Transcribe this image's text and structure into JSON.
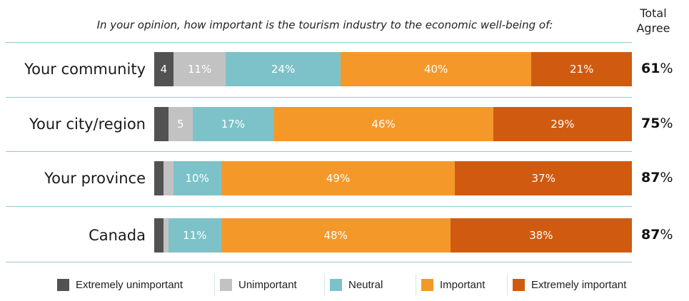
{
  "question": "In your opinion, how important is the tourism industry to the economic well-being of:",
  "total_header": [
    "Total",
    "Agree"
  ],
  "colors": {
    "Extremely unimportant": "#525252",
    "Unimportant": "#c2c2c2",
    "Neutral": "#7ec2c9",
    "Important": "#f5982a",
    "Extremely important": "#d05b10",
    "row_line": "#8fc9d2"
  },
  "chart_data": {
    "type": "bar",
    "orientation": "horizontal",
    "stacked": true,
    "categories": [
      "Your community",
      "Your city/region",
      "Your province",
      "Canada"
    ],
    "series": [
      {
        "name": "Extremely unimportant",
        "values": [
          4,
          3,
          2,
          2
        ],
        "labels": [
          "4",
          "",
          "",
          ""
        ]
      },
      {
        "name": "Unimportant",
        "values": [
          11,
          5,
          2,
          1
        ],
        "labels": [
          "11%",
          "5",
          "",
          ""
        ]
      },
      {
        "name": "Neutral",
        "values": [
          24,
          17,
          10,
          11
        ],
        "labels": [
          "24%",
          "17%",
          "10%",
          "11%"
        ]
      },
      {
        "name": "Important",
        "values": [
          40,
          46,
          49,
          48
        ],
        "labels": [
          "40%",
          "46%",
          "49%",
          "48%"
        ]
      },
      {
        "name": "Extremely important",
        "values": [
          21,
          29,
          37,
          38
        ],
        "labels": [
          "21%",
          "29%",
          "37%",
          "38%"
        ]
      }
    ],
    "total_agree": [
      {
        "value": "61",
        "unit": "%"
      },
      {
        "value": "75",
        "unit": "%"
      },
      {
        "value": "87",
        "unit": "%"
      },
      {
        "value": "87",
        "unit": "%"
      }
    ],
    "legend": [
      "Extremely unimportant",
      "Unimportant",
      "Neutral",
      "Important",
      "Extremely important"
    ],
    "legend_position": "bottom"
  }
}
